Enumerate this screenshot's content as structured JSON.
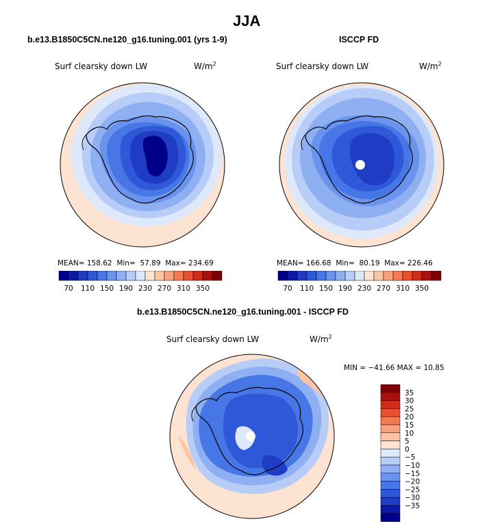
{
  "header": {
    "season": "JJA"
  },
  "colors": {
    "levels_abs": [
      "#00008a",
      "#0d1aa6",
      "#1f3cc4",
      "#2f58d8",
      "#4777e6",
      "#6a93ee",
      "#8eb0f3",
      "#b7cdf7",
      "#dde8fb",
      "#fde3d2",
      "#fbc4a6",
      "#f8a27d",
      "#f47a52",
      "#e9502f",
      "#cf2c1a",
      "#a8120d",
      "#7e0006"
    ],
    "levels_diff": [
      "#00008a",
      "#0d1aa6",
      "#1f3cc4",
      "#2f58d8",
      "#4777e6",
      "#6a93ee",
      "#8eb0f3",
      "#b7cdf7",
      "#dde8fb",
      "#fde3d2",
      "#fbc4a6",
      "#f8a27d",
      "#f47a52",
      "#e9502f",
      "#cf2c1a",
      "#a8120d",
      "#7e0006"
    ]
  },
  "panels": [
    {
      "case_title": "b.e13.B1850C5CN.ne120_g16.tuning.001 (yrs 1-9)",
      "variable": "Surf clearsky down LW",
      "units": "W/m",
      "units_exp": "2",
      "stats": {
        "mean_label": "MEAN=",
        "mean": "158.62",
        "min_label": "Min=",
        "min": "57.89",
        "max_label": "Max=",
        "max": "234.69"
      }
    },
    {
      "case_title": "ISCCP FD",
      "variable": "Surf clearsky down LW",
      "units": "W/m",
      "units_exp": "2",
      "stats": {
        "mean_label": "MEAN=",
        "mean": "166.68",
        "min_label": "Min=",
        "min": "80.19",
        "max_label": "Max=",
        "max": "226.46"
      }
    },
    {
      "case_title": "b.e13.B1850C5CN.ne120_g16.tuning.001 - ISCCP FD",
      "variable": "Surf clearsky down LW",
      "units": "W/m",
      "units_exp": "2",
      "stats_text": "MIN = −41.66 MAX =  10.85"
    }
  ],
  "colorbar_abs": {
    "tick_labels": [
      "70",
      "110",
      "150",
      "190",
      "230",
      "270",
      "310",
      "350"
    ]
  },
  "colorbar_diff": {
    "tick_labels": [
      "35",
      "30",
      "25",
      "20",
      "15",
      "10",
      "5",
      "0",
      "−5",
      "−10",
      "−15",
      "−20",
      "−25",
      "−30",
      "−35"
    ]
  }
}
